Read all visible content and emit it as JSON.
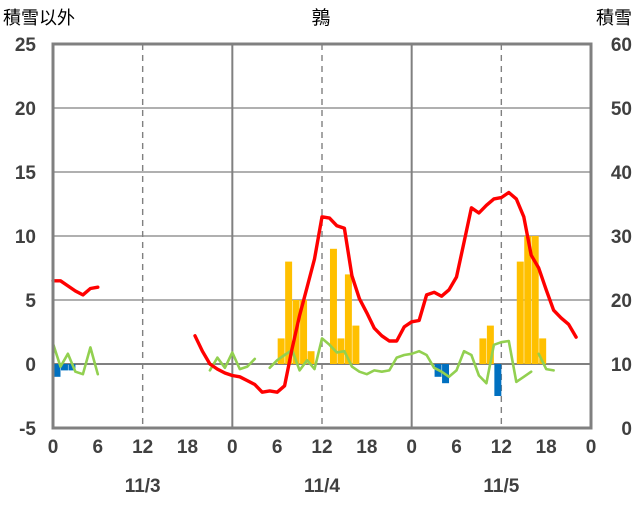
{
  "chart_data": {
    "type": "bar+line",
    "title": "鶉",
    "left_axis_label": "積雪以外",
    "right_axis_label": "積雪",
    "left_ylim": [
      -5,
      25
    ],
    "left_ticks": [
      -5,
      0,
      5,
      10,
      15,
      20,
      25
    ],
    "right_ylim": [
      0,
      60
    ],
    "right_ticks": [
      0,
      10,
      20,
      30,
      40,
      50,
      60
    ],
    "x_hours_range": [
      0,
      72
    ],
    "x_tick_labels": [
      "0",
      "6",
      "12",
      "18",
      "0",
      "6",
      "12",
      "18",
      "0",
      "6",
      "12",
      "18",
      "0"
    ],
    "date_labels": [
      "11/3",
      "11/4",
      "11/5"
    ],
    "colors": {
      "temperature": "#ff0000",
      "precipitation": "#ffc000",
      "negative_bar": "#0070c0",
      "green_line": "#92d050",
      "frame": "#808080",
      "gridline": "#808080"
    },
    "yellow_bars": [
      {
        "x": 30,
        "value": 2
      },
      {
        "x": 31,
        "value": 8
      },
      {
        "x": 32,
        "value": 5
      },
      {
        "x": 33,
        "value": 5
      },
      {
        "x": 34,
        "value": 1
      },
      {
        "x": 37,
        "value": 9
      },
      {
        "x": 38,
        "value": 2
      },
      {
        "x": 39,
        "value": 7
      },
      {
        "x": 40,
        "value": 3
      },
      {
        "x": 57,
        "value": 2
      },
      {
        "x": 58,
        "value": 3
      },
      {
        "x": 62,
        "value": 8
      },
      {
        "x": 63,
        "value": 10
      },
      {
        "x": 64,
        "value": 10
      },
      {
        "x": 65,
        "value": 2
      }
    ],
    "blue_bars": [
      {
        "x": 0,
        "value": -1
      },
      {
        "x": 1,
        "value": -0.5
      },
      {
        "x": 2,
        "value": -0.5
      },
      {
        "x": 51,
        "value": -1
      },
      {
        "x": 52,
        "value": -1.5
      },
      {
        "x": 59,
        "value": -2.5
      }
    ],
    "temperature_series": [
      [
        [
          0,
          6.5
        ],
        [
          1,
          6.5
        ],
        [
          2,
          6.1
        ],
        [
          3,
          5.7
        ],
        [
          4,
          5.4
        ],
        [
          5,
          5.9
        ],
        [
          6,
          6.0
        ]
      ],
      [
        [
          19,
          2.2
        ],
        [
          20,
          1.0
        ],
        [
          21,
          0.0
        ],
        [
          22,
          -0.4
        ],
        [
          23,
          -0.7
        ],
        [
          24,
          -0.9
        ],
        [
          25,
          -1.0
        ],
        [
          26,
          -1.3
        ],
        [
          27,
          -1.6
        ],
        [
          28,
          -2.2
        ],
        [
          29,
          -2.1
        ],
        [
          30,
          -2.2
        ],
        [
          31,
          -1.7
        ],
        [
          32,
          1.2
        ],
        [
          33,
          3.8
        ],
        [
          34,
          6.0
        ],
        [
          35,
          8.2
        ],
        [
          36,
          11.5
        ],
        [
          37,
          11.4
        ],
        [
          38,
          10.8
        ],
        [
          39,
          10.6
        ],
        [
          40,
          6.9
        ],
        [
          41,
          5.1
        ],
        [
          42,
          4.0
        ],
        [
          43,
          2.8
        ],
        [
          44,
          2.2
        ],
        [
          45,
          1.8
        ],
        [
          46,
          1.8
        ],
        [
          47,
          2.9
        ],
        [
          48,
          3.3
        ],
        [
          49,
          3.4
        ],
        [
          50,
          5.4
        ],
        [
          51,
          5.6
        ],
        [
          52,
          5.3
        ],
        [
          53,
          5.8
        ],
        [
          54,
          6.8
        ],
        [
          55,
          9.5
        ],
        [
          56,
          12.2
        ],
        [
          57,
          11.8
        ],
        [
          58,
          12.4
        ],
        [
          59,
          12.9
        ],
        [
          60,
          13.0
        ],
        [
          61,
          13.4
        ],
        [
          62,
          12.9
        ],
        [
          63,
          11.5
        ],
        [
          64,
          8.5
        ],
        [
          65,
          7.5
        ],
        [
          66,
          5.8
        ],
        [
          67,
          4.2
        ],
        [
          68,
          3.6
        ],
        [
          69,
          3.1
        ],
        [
          70,
          2.1
        ]
      ]
    ],
    "green_series": [
      [
        [
          0,
          1.6
        ],
        [
          1,
          -0.2
        ],
        [
          2,
          0.8
        ],
        [
          3,
          -0.6
        ],
        [
          4,
          -0.8
        ],
        [
          5,
          1.3
        ],
        [
          6,
          -0.8
        ]
      ],
      [
        [
          21,
          -0.5
        ],
        [
          22,
          0.5
        ],
        [
          23,
          -0.3
        ],
        [
          24,
          0.9
        ],
        [
          25,
          -0.4
        ],
        [
          26,
          -0.2
        ],
        [
          27,
          0.4
        ]
      ],
      [
        [
          29,
          -0.3
        ],
        [
          30,
          0.3
        ],
        [
          31,
          0.7
        ],
        [
          32,
          1.1
        ],
        [
          33,
          -0.5
        ],
        [
          34,
          0.3
        ],
        [
          35,
          -0.4
        ],
        [
          36,
          2.0
        ],
        [
          37,
          1.5
        ],
        [
          38,
          0.9
        ],
        [
          39,
          1.0
        ],
        [
          40,
          -0.2
        ],
        [
          41,
          -0.6
        ],
        [
          42,
          -0.8
        ],
        [
          43,
          -0.5
        ],
        [
          44,
          -0.6
        ],
        [
          45,
          -0.5
        ],
        [
          46,
          0.5
        ],
        [
          47,
          0.7
        ],
        [
          48,
          0.8
        ],
        [
          49,
          1.0
        ],
        [
          50,
          0.7
        ],
        [
          51,
          -0.3
        ],
        [
          52,
          -0.6
        ],
        [
          53,
          -1.0
        ],
        [
          54,
          -0.5
        ],
        [
          55,
          1.0
        ],
        [
          56,
          0.7
        ],
        [
          57,
          -0.9
        ],
        [
          58,
          -1.5
        ],
        [
          59,
          1.5
        ],
        [
          60,
          1.7
        ],
        [
          61,
          1.8
        ],
        [
          62,
          -1.4
        ],
        [
          63,
          -1.0
        ],
        [
          64,
          -0.6
        ]
      ],
      [
        [
          65,
          0.8
        ],
        [
          66,
          -0.4
        ],
        [
          67,
          -0.5
        ]
      ]
    ]
  }
}
